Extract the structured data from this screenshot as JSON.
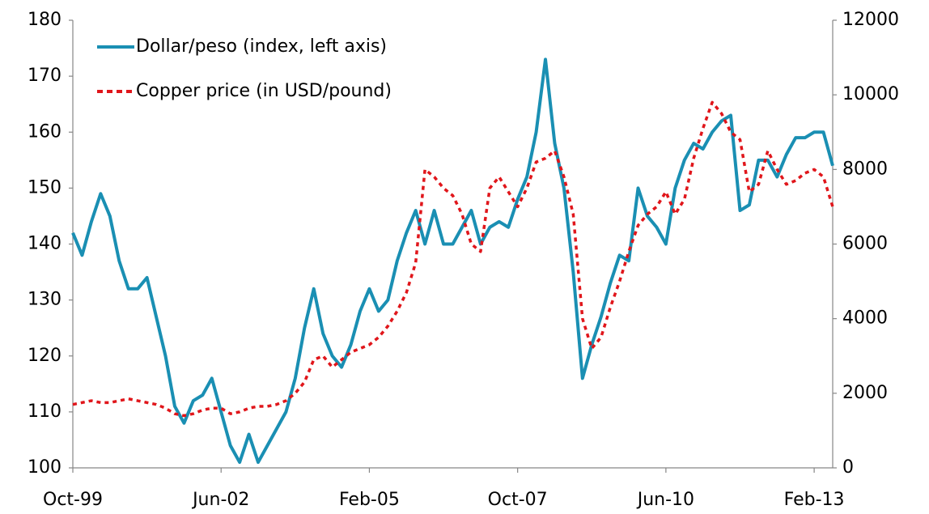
{
  "chart_data": {
    "type": "line",
    "categories": [
      "Oct-99",
      null,
      null,
      null,
      null,
      null,
      null,
      null,
      null,
      null,
      null,
      null,
      null,
      null,
      null,
      null,
      "Jun-02",
      null,
      null,
      null,
      null,
      null,
      null,
      null,
      null,
      null,
      null,
      null,
      null,
      null,
      null,
      null,
      "Feb-05",
      null,
      null,
      null,
      null,
      null,
      null,
      null,
      null,
      null,
      null,
      null,
      null,
      null,
      null,
      null,
      "Oct-07",
      null,
      null,
      null,
      null,
      null,
      null,
      null,
      null,
      null,
      null,
      null,
      null,
      null,
      null,
      null,
      "Jun-10",
      null,
      null,
      null,
      null,
      null,
      null,
      null,
      null,
      null,
      null,
      null,
      null,
      null,
      null,
      null,
      "Feb-13",
      null,
      null
    ],
    "series": [
      {
        "name": "Dollar/peso (index, left axis)",
        "color": "#1a8fb3",
        "axis": "y",
        "values": [
          142,
          138,
          144,
          149,
          145,
          137,
          132,
          132,
          134,
          127,
          120,
          111,
          108,
          112,
          113,
          116,
          110,
          104,
          101,
          106,
          101,
          104,
          107,
          110,
          116,
          125,
          132,
          124,
          120,
          118,
          122,
          128,
          132,
          128,
          130,
          137,
          142,
          146,
          140,
          146,
          140,
          140,
          143,
          146,
          140,
          143,
          144,
          143,
          148,
          152,
          160,
          173,
          158,
          150,
          135,
          116,
          122,
          127,
          133,
          138,
          137,
          150,
          145,
          143,
          140,
          150,
          155,
          158,
          157,
          160,
          162,
          163,
          146,
          147,
          155,
          155,
          152,
          156,
          159,
          159,
          160,
          160,
          154
        ]
      },
      {
        "name": "Copper price (in USD/pound)",
        "color": "#e0161b",
        "axis": "y2",
        "dashed": true,
        "values": [
          1700,
          1750,
          1800,
          1750,
          1750,
          1800,
          1850,
          1800,
          1750,
          1700,
          1600,
          1450,
          1400,
          1450,
          1550,
          1600,
          1600,
          1450,
          1500,
          1600,
          1650,
          1650,
          1700,
          1800,
          2000,
          2300,
          2900,
          3000,
          2700,
          2900,
          3100,
          3200,
          3300,
          3500,
          3800,
          4200,
          4700,
          5500,
          8000,
          7800,
          7500,
          7300,
          6800,
          6000,
          5800,
          7500,
          7800,
          7400,
          7000,
          7500,
          8200,
          8300,
          8500,
          7800,
          6800,
          4000,
          3200,
          3500,
          4300,
          5000,
          5800,
          6500,
          6800,
          7000,
          7400,
          6800,
          7200,
          8300,
          9100,
          9800,
          9500,
          9000,
          8800,
          7400,
          7600,
          8500,
          8000,
          7600,
          7700,
          7900,
          8000,
          7800,
          7000
        ]
      }
    ],
    "ylim": [
      100,
      180
    ],
    "yticks": [
      100,
      110,
      120,
      130,
      140,
      150,
      160,
      170,
      180
    ],
    "y2lim": [
      0,
      12000
    ],
    "y2ticks": [
      0,
      2000,
      4000,
      6000,
      8000,
      10000,
      12000
    ],
    "grid": false,
    "legend": "top-left"
  }
}
